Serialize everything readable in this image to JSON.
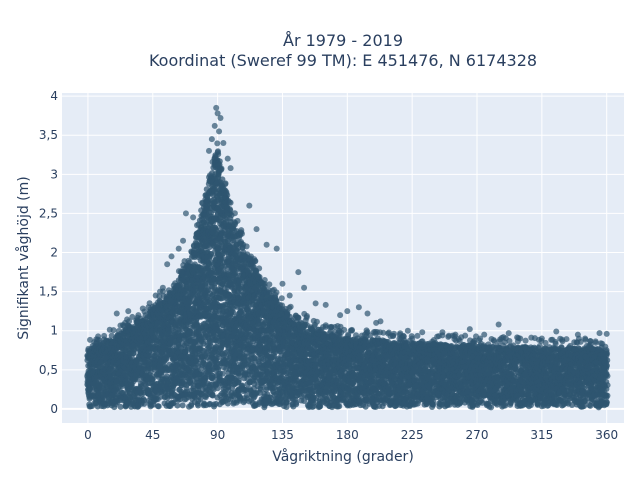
{
  "chart_data": {
    "type": "scatter",
    "title_line1": "År 1979 - 2019",
    "title_line2": "Koordinat (Sweref 99 TM): E 451476, N 6174328",
    "xlabel": "Vågriktning (grader)",
    "ylabel": "Signifikant våghöjd (m)",
    "xlim": [
      -18,
      372
    ],
    "ylim": [
      -0.18,
      4.04
    ],
    "x_ticks": [
      0,
      45,
      90,
      135,
      180,
      225,
      270,
      315,
      360
    ],
    "x_tick_labels": [
      "0",
      "45",
      "90",
      "135",
      "180",
      "225",
      "270",
      "315",
      "360"
    ],
    "y_ticks": [
      0,
      0.5,
      1,
      1.5,
      2,
      2.5,
      3,
      3.5,
      4
    ],
    "y_tick_labels": [
      "0",
      "0,5",
      "1",
      "1,5",
      "2",
      "2,5",
      "3",
      "3,5",
      "4"
    ],
    "grid": true,
    "marker_color": "#2f5670",
    "plot_background": "#e5ecf6",
    "envelope": {
      "x": [
        0,
        10,
        20,
        30,
        40,
        50,
        60,
        70,
        75,
        80,
        85,
        88,
        90,
        92,
        95,
        100,
        105,
        110,
        115,
        120,
        130,
        140,
        150,
        160,
        170,
        180,
        200,
        220,
        240,
        260,
        280,
        300,
        320,
        340,
        360
      ],
      "ymax": [
        0.75,
        0.85,
        0.95,
        1.1,
        1.2,
        1.35,
        1.55,
        1.9,
        2.2,
        2.6,
        2.95,
        3.2,
        3.3,
        3.1,
        2.8,
        2.5,
        2.25,
        2.0,
        1.85,
        1.65,
        1.4,
        1.2,
        1.1,
        1.0,
        0.95,
        0.92,
        0.88,
        0.85,
        0.83,
        0.82,
        0.8,
        0.8,
        0.78,
        0.78,
        0.76
      ]
    },
    "outliers": [
      {
        "x": 89,
        "y": 3.85
      },
      {
        "x": 90,
        "y": 3.78
      },
      {
        "x": 92,
        "y": 3.72
      },
      {
        "x": 88,
        "y": 3.62
      },
      {
        "x": 86,
        "y": 3.45
      },
      {
        "x": 94,
        "y": 3.4
      },
      {
        "x": 91,
        "y": 3.55
      },
      {
        "x": 97,
        "y": 3.2
      },
      {
        "x": 84,
        "y": 3.3
      },
      {
        "x": 99,
        "y": 3.08
      },
      {
        "x": 68,
        "y": 2.5
      },
      {
        "x": 73,
        "y": 2.45
      },
      {
        "x": 66,
        "y": 2.15
      },
      {
        "x": 117,
        "y": 2.3
      },
      {
        "x": 124,
        "y": 2.1
      },
      {
        "x": 131,
        "y": 2.05
      },
      {
        "x": 146,
        "y": 1.75
      },
      {
        "x": 112,
        "y": 2.6
      },
      {
        "x": 55,
        "y": 1.85
      },
      {
        "x": 58,
        "y": 1.95
      },
      {
        "x": 63,
        "y": 2.05
      },
      {
        "x": 150,
        "y": 1.55
      },
      {
        "x": 158,
        "y": 1.35
      },
      {
        "x": 165,
        "y": 1.33
      },
      {
        "x": 180,
        "y": 1.25
      },
      {
        "x": 188,
        "y": 1.3
      },
      {
        "x": 194,
        "y": 1.22
      },
      {
        "x": 200,
        "y": 1.1
      },
      {
        "x": 203,
        "y": 1.12
      },
      {
        "x": 175,
        "y": 1.2
      },
      {
        "x": 246,
        "y": 0.98
      },
      {
        "x": 265,
        "y": 1.02
      },
      {
        "x": 285,
        "y": 1.08
      },
      {
        "x": 292,
        "y": 0.97
      },
      {
        "x": 315,
        "y": 0.9
      },
      {
        "x": 325,
        "y": 0.99
      },
      {
        "x": 340,
        "y": 0.95
      },
      {
        "x": 355,
        "y": 0.97
      },
      {
        "x": 360,
        "y": 0.96
      },
      {
        "x": 222,
        "y": 1.0
      },
      {
        "x": 232,
        "y": 0.98
      },
      {
        "x": 255,
        "y": 0.95
      },
      {
        "x": 20,
        "y": 1.22
      },
      {
        "x": 28,
        "y": 1.25
      },
      {
        "x": 35,
        "y": 1.2
      },
      {
        "x": 42,
        "y": 1.3
      },
      {
        "x": 47,
        "y": 1.45
      },
      {
        "x": 50,
        "y": 1.5
      },
      {
        "x": 52,
        "y": 1.55
      },
      {
        "x": 140,
        "y": 1.45
      },
      {
        "x": 135,
        "y": 1.6
      },
      {
        "x": 169,
        "y": 1.05
      },
      {
        "x": 210,
        "y": 0.93
      },
      {
        "x": 300,
        "y": 0.9
      },
      {
        "x": 275,
        "y": 0.95
      },
      {
        "x": 345,
        "y": 0.9
      }
    ]
  }
}
